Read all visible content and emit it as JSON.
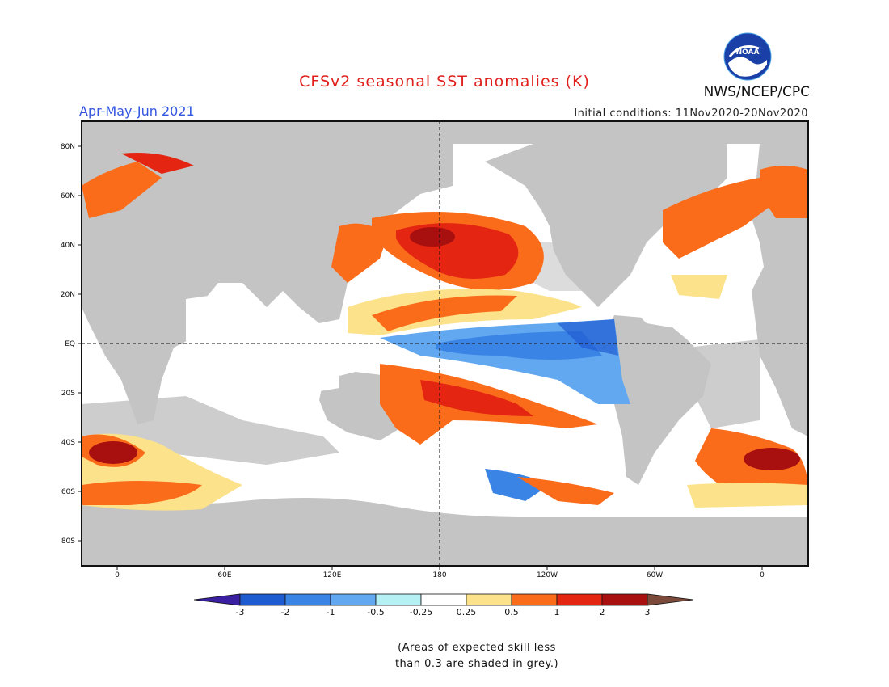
{
  "title": "CFSv2 seasonal SST anomalies (K)",
  "period": "Apr-May-Jun 2021",
  "initial_conditions": "Initial conditions: 11Nov2020-20Nov2020",
  "organization": "NWS/NCEP/CPC",
  "logo_text": "NOAA",
  "lat_labels": [
    "80N",
    "60N",
    "40N",
    "20N",
    "EQ",
    "20S",
    "40S",
    "60S",
    "80S"
  ],
  "lon_labels": [
    "0",
    "60E",
    "120E",
    "180",
    "120W",
    "60W",
    "0"
  ],
  "colorbar": {
    "ticks": [
      "-3",
      "-2",
      "-1",
      "-0.5",
      "-0.25",
      "0.25",
      "0.5",
      "1",
      "2",
      "3"
    ],
    "colors": [
      "#3a1fa0",
      "#1f5bd0",
      "#3a84e6",
      "#62a8f0",
      "#b4f0f4",
      "#ffffff",
      "#fce28a",
      "#fb6c1a",
      "#e32512",
      "#a80f0f",
      "#7b4a3a"
    ]
  },
  "colors": {
    "land": "#c4c4c4",
    "ocean_background": "#ffffff"
  },
  "note": [
    "(Areas of expected skill less",
    "than 0.3 are shaded in grey.)"
  ]
}
